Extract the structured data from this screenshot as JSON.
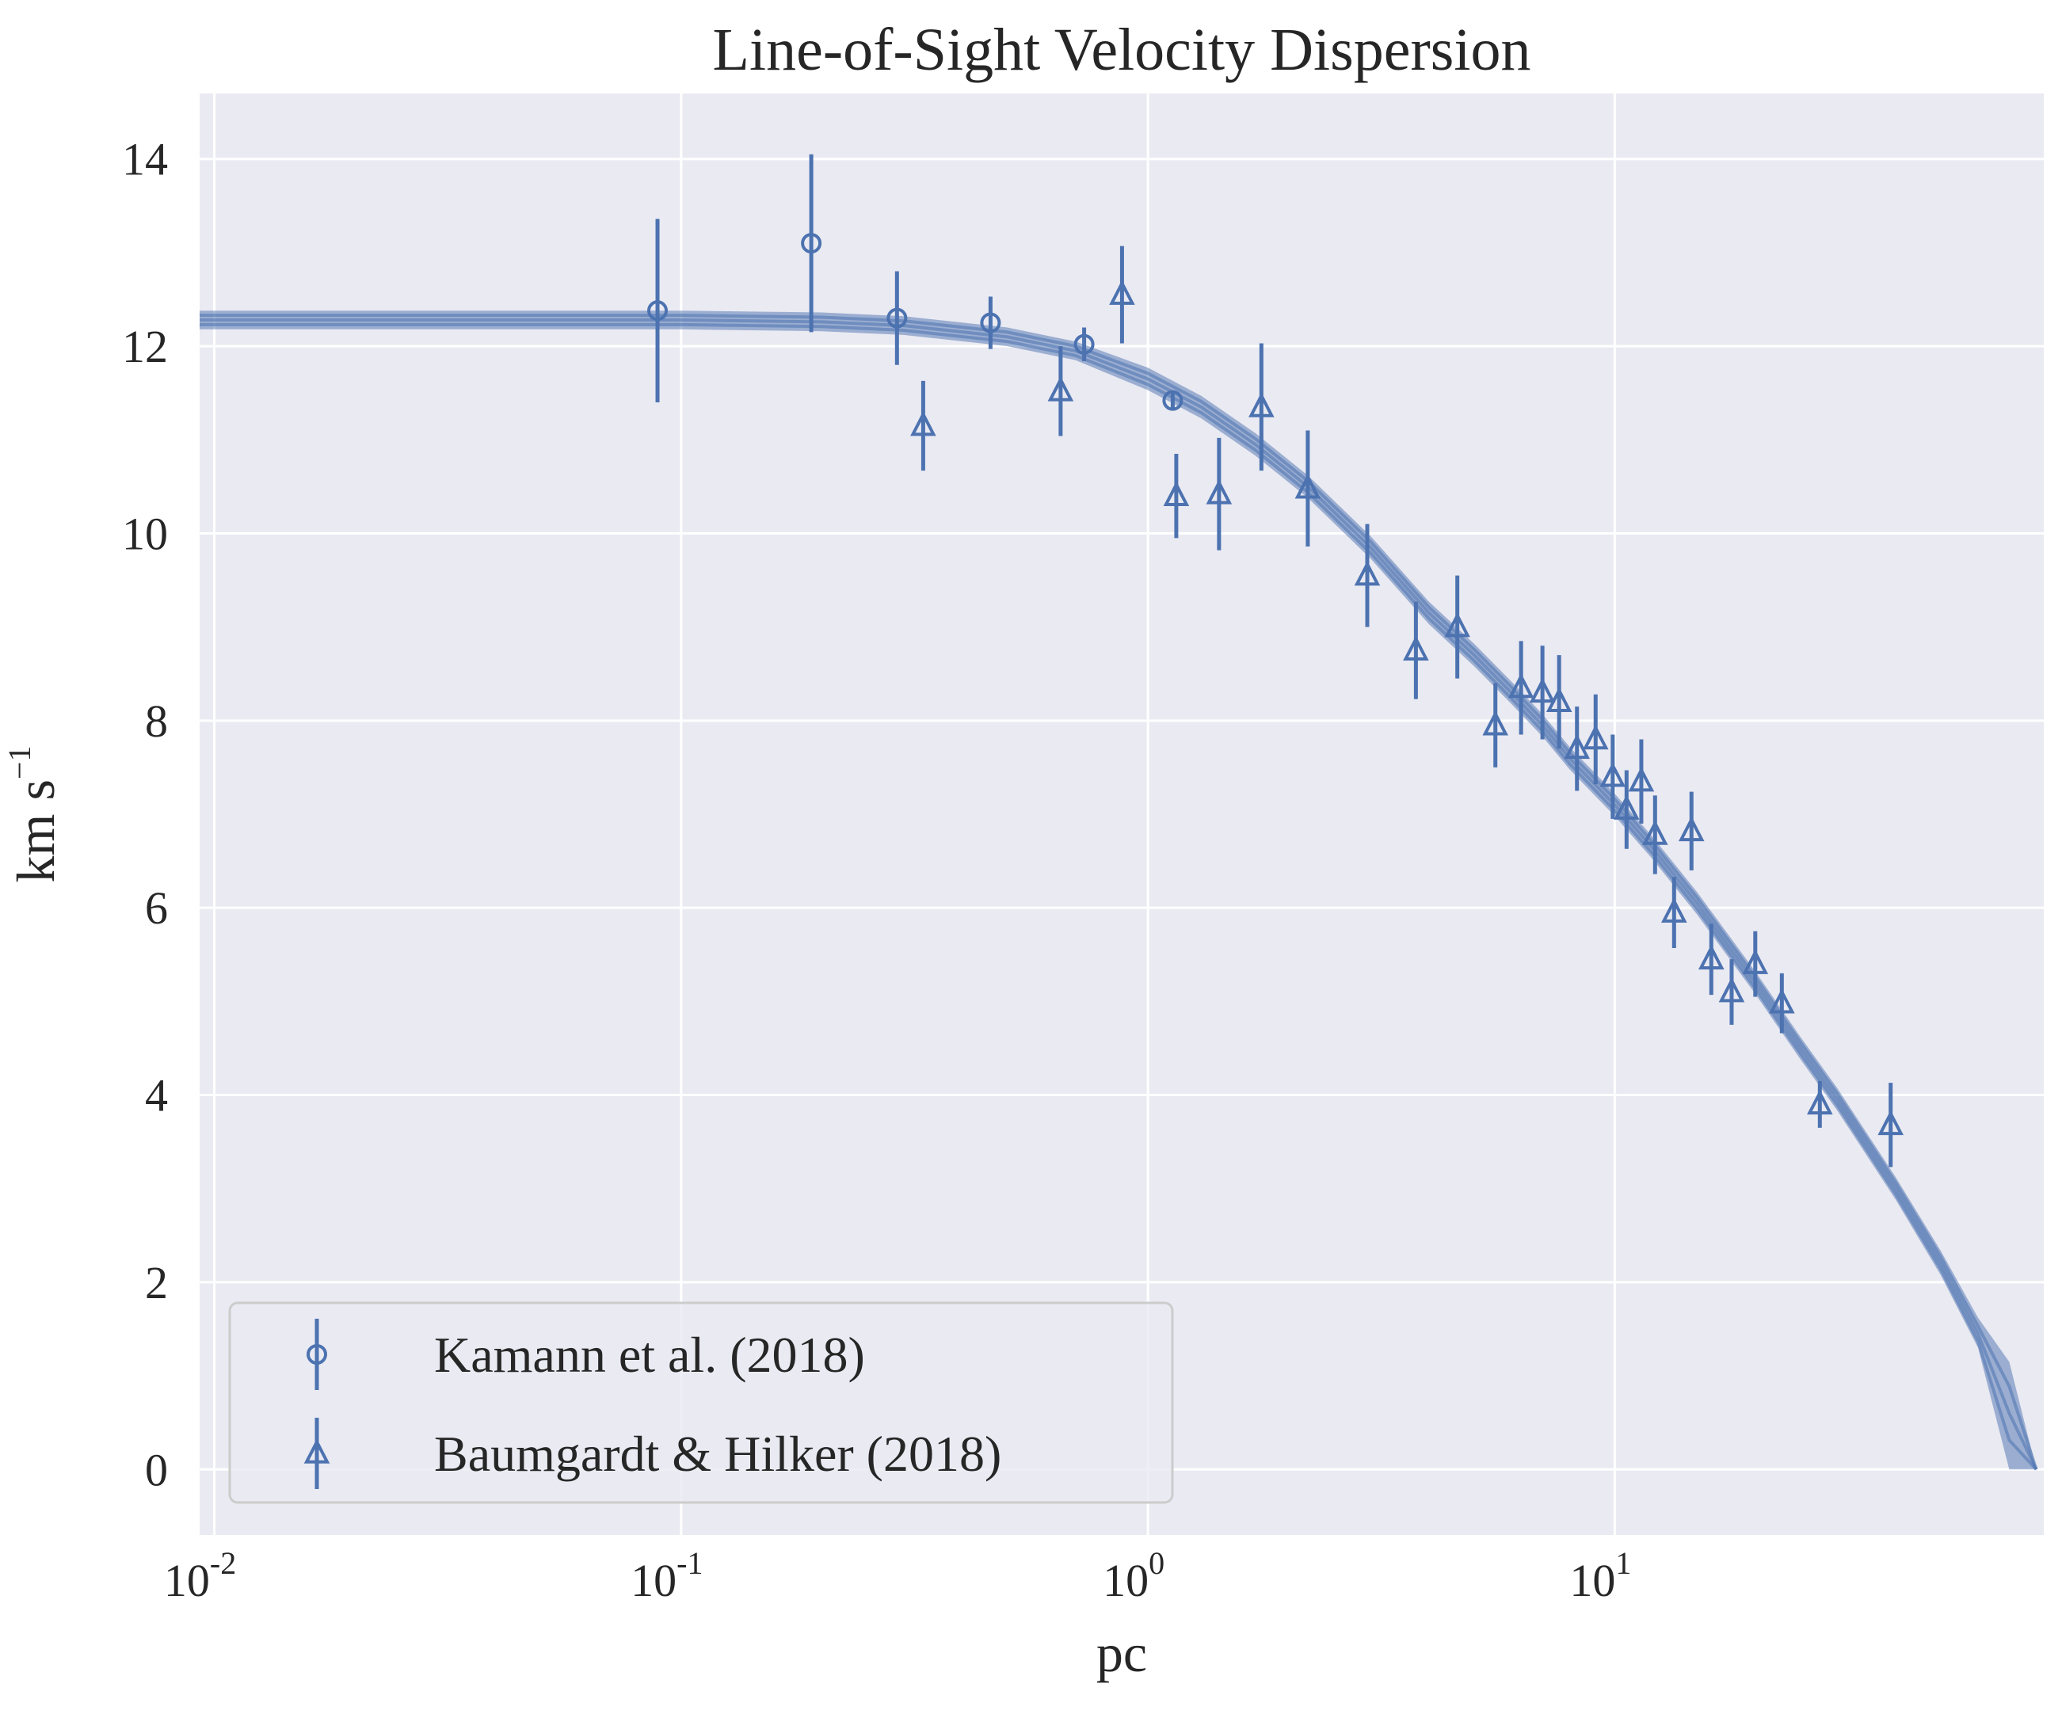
{
  "chart_data": {
    "type": "scatter",
    "title": "Line-of-Sight Velocity Dispersion",
    "xlabel": "pc",
    "ylabel": "km s",
    "ylabel_exponent": "−1",
    "xscale": "log",
    "xlim": [
      0.0093,
      83
    ],
    "ylim": [
      -0.7,
      14.7
    ],
    "yticks": [
      0,
      2,
      4,
      6,
      8,
      10,
      12,
      14
    ],
    "xticks": [
      {
        "value": 0.01,
        "base": "10",
        "exp": "-2"
      },
      {
        "value": 0.1,
        "base": "10",
        "exp": "-1"
      },
      {
        "value": 1,
        "base": "10",
        "exp": "0"
      },
      {
        "value": 10,
        "base": "10",
        "exp": "1"
      }
    ],
    "grid": true,
    "legend_position": "lower-left",
    "colors": {
      "background": "#eaeaf2",
      "series": "#4c72b0",
      "grid": "#ffffff",
      "text": "#262626"
    },
    "model_band": {
      "x": [
        0.0093,
        0.05,
        0.1,
        0.2,
        0.3,
        0.5,
        0.7,
        1.0,
        1.3,
        1.7,
        2.2,
        3.0,
        4.0,
        5.0,
        6.0,
        7.0,
        8.0,
        10,
        12,
        15,
        20,
        25,
        30,
        40,
        50,
        60,
        70,
        80
      ],
      "y": [
        12.28,
        12.28,
        12.28,
        12.26,
        12.22,
        12.1,
        11.95,
        11.65,
        11.35,
        10.95,
        10.5,
        9.85,
        9.15,
        8.7,
        8.3,
        7.95,
        7.6,
        7.1,
        6.65,
        6.05,
        5.2,
        4.5,
        3.95,
        3.0,
        2.2,
        1.45,
        0.6,
        0.0
      ],
      "upper": [
        12.38,
        12.38,
        12.38,
        12.36,
        12.32,
        12.2,
        12.05,
        11.77,
        11.47,
        11.07,
        10.62,
        9.97,
        9.27,
        8.82,
        8.42,
        8.07,
        7.72,
        7.22,
        6.77,
        6.17,
        5.32,
        4.62,
        4.07,
        3.12,
        2.33,
        1.62,
        1.15,
        0.0
      ],
      "lower": [
        12.18,
        12.18,
        12.18,
        12.16,
        12.12,
        12.0,
        11.85,
        11.53,
        11.23,
        10.83,
        10.38,
        9.73,
        9.03,
        8.58,
        8.18,
        7.83,
        7.48,
        6.98,
        6.53,
        5.93,
        5.08,
        4.38,
        3.83,
        2.88,
        2.07,
        1.3,
        0.0,
        0.0
      ]
    },
    "series": [
      {
        "name": "Kamann et al. (2018)",
        "marker": "circle",
        "points": [
          {
            "x": 0.089,
            "y": 12.38,
            "err": 0.98
          },
          {
            "x": 0.19,
            "y": 13.1,
            "err": 0.95
          },
          {
            "x": 0.29,
            "y": 12.3,
            "err": 0.5
          },
          {
            "x": 0.46,
            "y": 12.25,
            "err": 0.28
          },
          {
            "x": 0.73,
            "y": 12.02,
            "err": 0.18
          },
          {
            "x": 1.13,
            "y": 11.42,
            "err": 0.1
          }
        ]
      },
      {
        "name": "Baumgardt & Hilker (2018)",
        "marker": "triangle",
        "points": [
          {
            "x": 0.33,
            "y": 11.15,
            "err": 0.48
          },
          {
            "x": 0.65,
            "y": 11.52,
            "err": 0.48
          },
          {
            "x": 0.88,
            "y": 12.55,
            "err": 0.52
          },
          {
            "x": 1.15,
            "y": 10.4,
            "err": 0.45
          },
          {
            "x": 1.42,
            "y": 10.42,
            "err": 0.6
          },
          {
            "x": 1.75,
            "y": 11.35,
            "err": 0.68
          },
          {
            "x": 2.2,
            "y": 10.48,
            "err": 0.62
          },
          {
            "x": 2.95,
            "y": 9.55,
            "err": 0.55
          },
          {
            "x": 3.75,
            "y": 8.75,
            "err": 0.52
          },
          {
            "x": 4.6,
            "y": 9.0,
            "err": 0.55
          },
          {
            "x": 5.55,
            "y": 7.95,
            "err": 0.45
          },
          {
            "x": 6.3,
            "y": 8.35,
            "err": 0.5
          },
          {
            "x": 7.0,
            "y": 8.3,
            "err": 0.5
          },
          {
            "x": 7.6,
            "y": 8.2,
            "err": 0.5
          },
          {
            "x": 8.3,
            "y": 7.7,
            "err": 0.45
          },
          {
            "x": 9.1,
            "y": 7.8,
            "err": 0.48
          },
          {
            "x": 9.9,
            "y": 7.4,
            "err": 0.45
          },
          {
            "x": 10.6,
            "y": 7.05,
            "err": 0.42
          },
          {
            "x": 11.4,
            "y": 7.35,
            "err": 0.45
          },
          {
            "x": 12.2,
            "y": 6.78,
            "err": 0.42
          },
          {
            "x": 13.4,
            "y": 5.95,
            "err": 0.38
          },
          {
            "x": 14.6,
            "y": 6.82,
            "err": 0.42
          },
          {
            "x": 16.1,
            "y": 5.45,
            "err": 0.38
          },
          {
            "x": 17.8,
            "y": 5.1,
            "err": 0.35
          },
          {
            "x": 20.0,
            "y": 5.4,
            "err": 0.35
          },
          {
            "x": 22.8,
            "y": 4.98,
            "err": 0.32
          },
          {
            "x": 27.5,
            "y": 3.9,
            "err": 0.25
          },
          {
            "x": 39.0,
            "y": 3.68,
            "err": 0.45
          }
        ]
      }
    ]
  }
}
